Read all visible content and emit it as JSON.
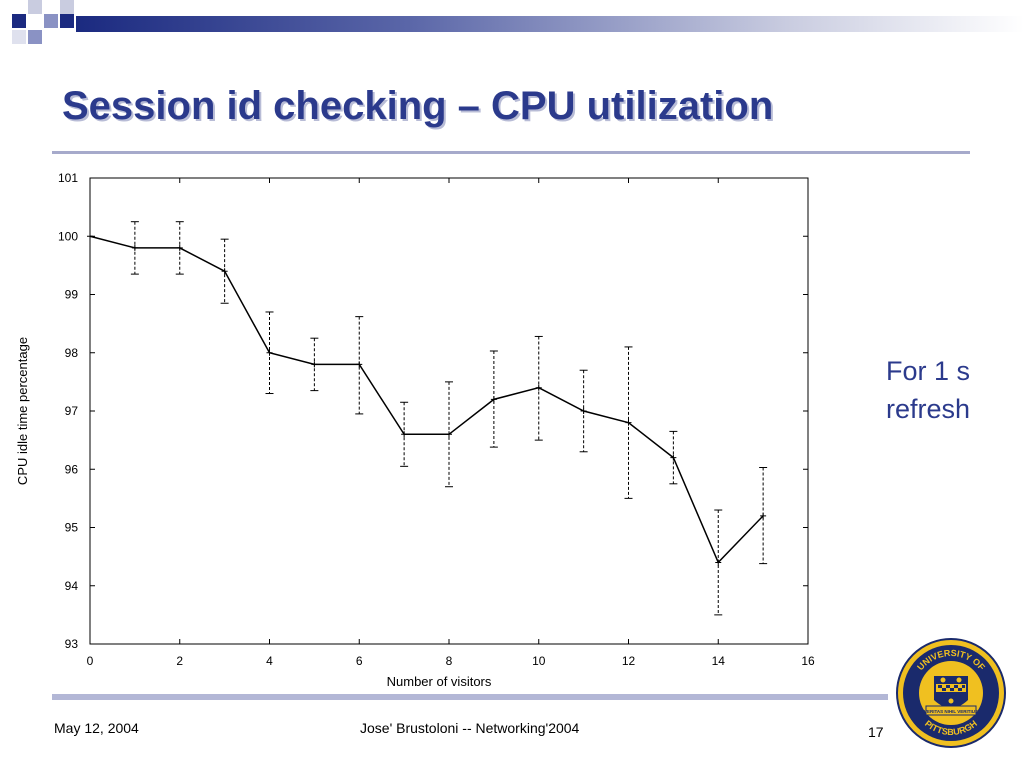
{
  "slide": {
    "title": "Session id checking – CPU utilization",
    "side_note_lines": [
      "For 1 s",
      "refresh"
    ],
    "footer": {
      "date": "May 12, 2004",
      "center": "Jose' Brustoloni -- Networking'2004",
      "page": "17"
    },
    "logo": {
      "text_top": "UNIVERSITY OF",
      "text_bottom": "PITTSBURGH",
      "banner": "VERITAS NIHIL VERITIUS"
    },
    "colors": {
      "accent": "#2b3a8c",
      "rule": "#a6aacb",
      "logo_gold": "#f0c020",
      "logo_navy": "#1a2a6c"
    }
  },
  "chart_data": {
    "type": "line",
    "title": "",
    "xlabel": "Number of visitors",
    "ylabel": "CPU idle time percentage",
    "xlim": [
      0,
      16
    ],
    "ylim": [
      93,
      101
    ],
    "xticks": [
      0,
      2,
      4,
      6,
      8,
      10,
      12,
      14,
      16
    ],
    "yticks": [
      93,
      94,
      95,
      96,
      97,
      98,
      99,
      100,
      101
    ],
    "grid": false,
    "legend": "none",
    "series": [
      {
        "x": [
          0,
          1,
          2,
          3,
          4,
          5,
          6,
          7,
          8,
          9,
          10,
          11,
          12,
          13,
          14,
          15
        ],
        "y": [
          100.0,
          99.8,
          99.8,
          99.4,
          98.0,
          97.8,
          97.8,
          96.6,
          96.6,
          97.2,
          97.4,
          97.0,
          96.8,
          96.2,
          94.4,
          95.2
        ],
        "y_low": [
          100.0,
          99.35,
          99.35,
          98.85,
          97.3,
          97.35,
          96.95,
          96.05,
          95.7,
          96.38,
          96.5,
          96.3,
          95.5,
          95.75,
          93.5,
          94.38
        ],
        "y_high": [
          100.0,
          100.25,
          100.25,
          99.95,
          98.7,
          98.25,
          98.62,
          97.15,
          97.5,
          98.03,
          98.28,
          97.7,
          98.1,
          96.65,
          95.3,
          96.03
        ]
      }
    ]
  }
}
